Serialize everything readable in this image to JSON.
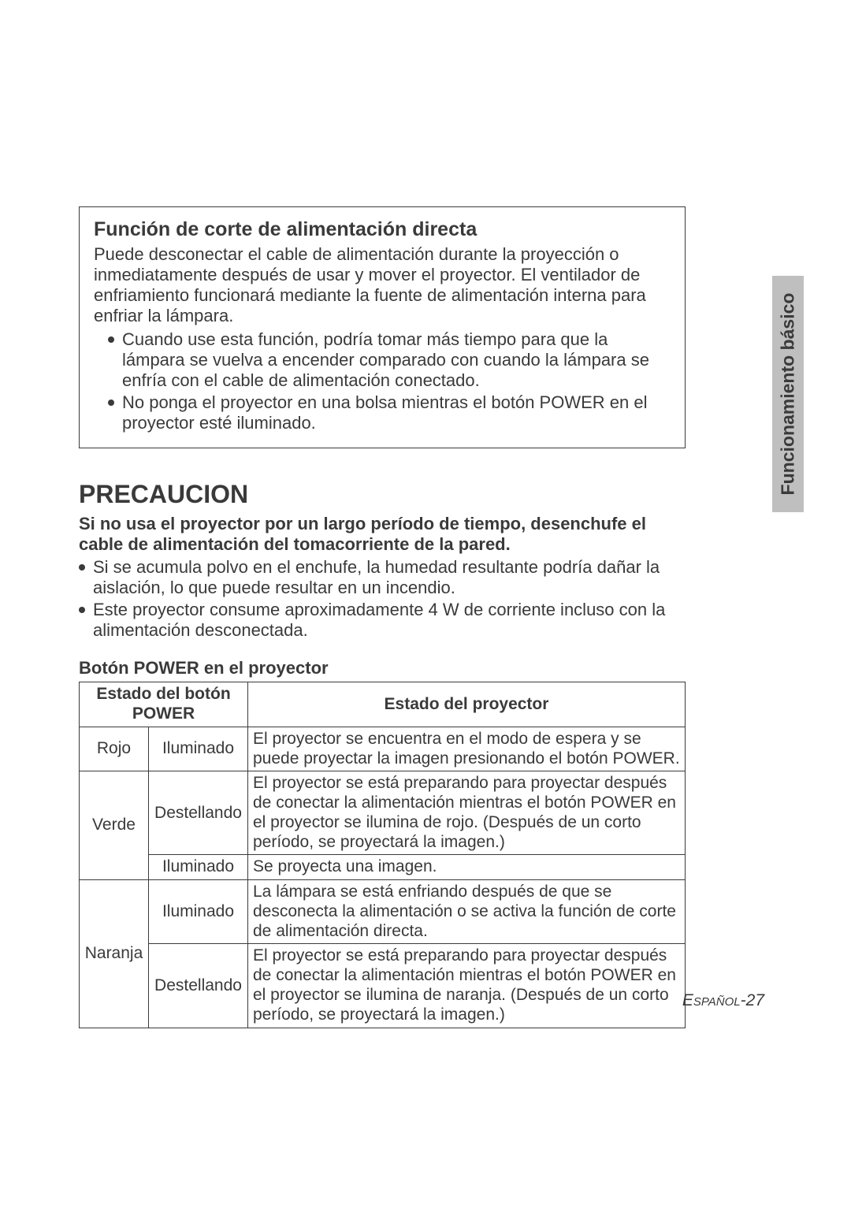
{
  "sideTab": {
    "label": "Funcionamiento básico"
  },
  "box": {
    "title": "Función de corte de alimentación directa",
    "para": "Puede desconectar el cable de alimentación durante la proyección o inmediatamente después de usar y mover el proyector. El ventilador de enfriamiento funcionará mediante la fuente de alimentación interna para enfriar la lámpara.",
    "bullets": [
      "Cuando use esta función, podría tomar más tiempo para que la lámpara se vuelva a encender comparado con cuando la lámpara se enfría con el cable de alimentación conectado.",
      "No ponga el proyector en una bolsa mientras el botón POWER en el proyector esté iluminado."
    ]
  },
  "precaucion": {
    "heading": "PRECAUCION",
    "boldPara": "Si no usa el proyector por un largo período de tiempo, desenchufe el cable de alimentación del tomacorriente de la pared.",
    "bullets": [
      "Si se acumula polvo en el enchufe, la humedad resultante podría dañar la aislación, lo que puede resultar en un incendio.",
      "Este proyector consume aproximadamente 4 W de corriente incluso con la alimentación desconectada."
    ]
  },
  "table": {
    "title": "Botón POWER en el proyector",
    "header": {
      "col12": "Estado del botón POWER",
      "col3": "Estado del proyector"
    },
    "rows": [
      {
        "color": "Rojo",
        "rowspan": 1,
        "state": "Iluminado",
        "desc": "El proyector se encuentra en el modo de espera y se puede proyectar la imagen presionando el botón POWER."
      },
      {
        "color": "Verde",
        "rowspan": 2,
        "state": "Destellando",
        "desc": "El proyector se está preparando para proyectar después de conectar la alimentación mientras el botón POWER en el proyector se ilumina de rojo. (Después de un corto período, se proyectará la imagen.)"
      },
      {
        "state": "Iluminado",
        "desc": "Se proyecta una imagen."
      },
      {
        "color": "Naranja",
        "rowspan": 2,
        "state": "Iluminado",
        "desc": "La lámpara se está enfriando después de que se desconecta la alimentación o se activa la función de corte de alimentación directa."
      },
      {
        "state": "Destellando",
        "desc": "El proyector se está preparando para proyectar después de conectar la alimentación mientras el botón POWER en el proyector se ilumina de naranja. (Después de un corto período, se proyectará la imagen.)"
      }
    ]
  },
  "footer": {
    "lang": "Español",
    "page": "-27"
  }
}
